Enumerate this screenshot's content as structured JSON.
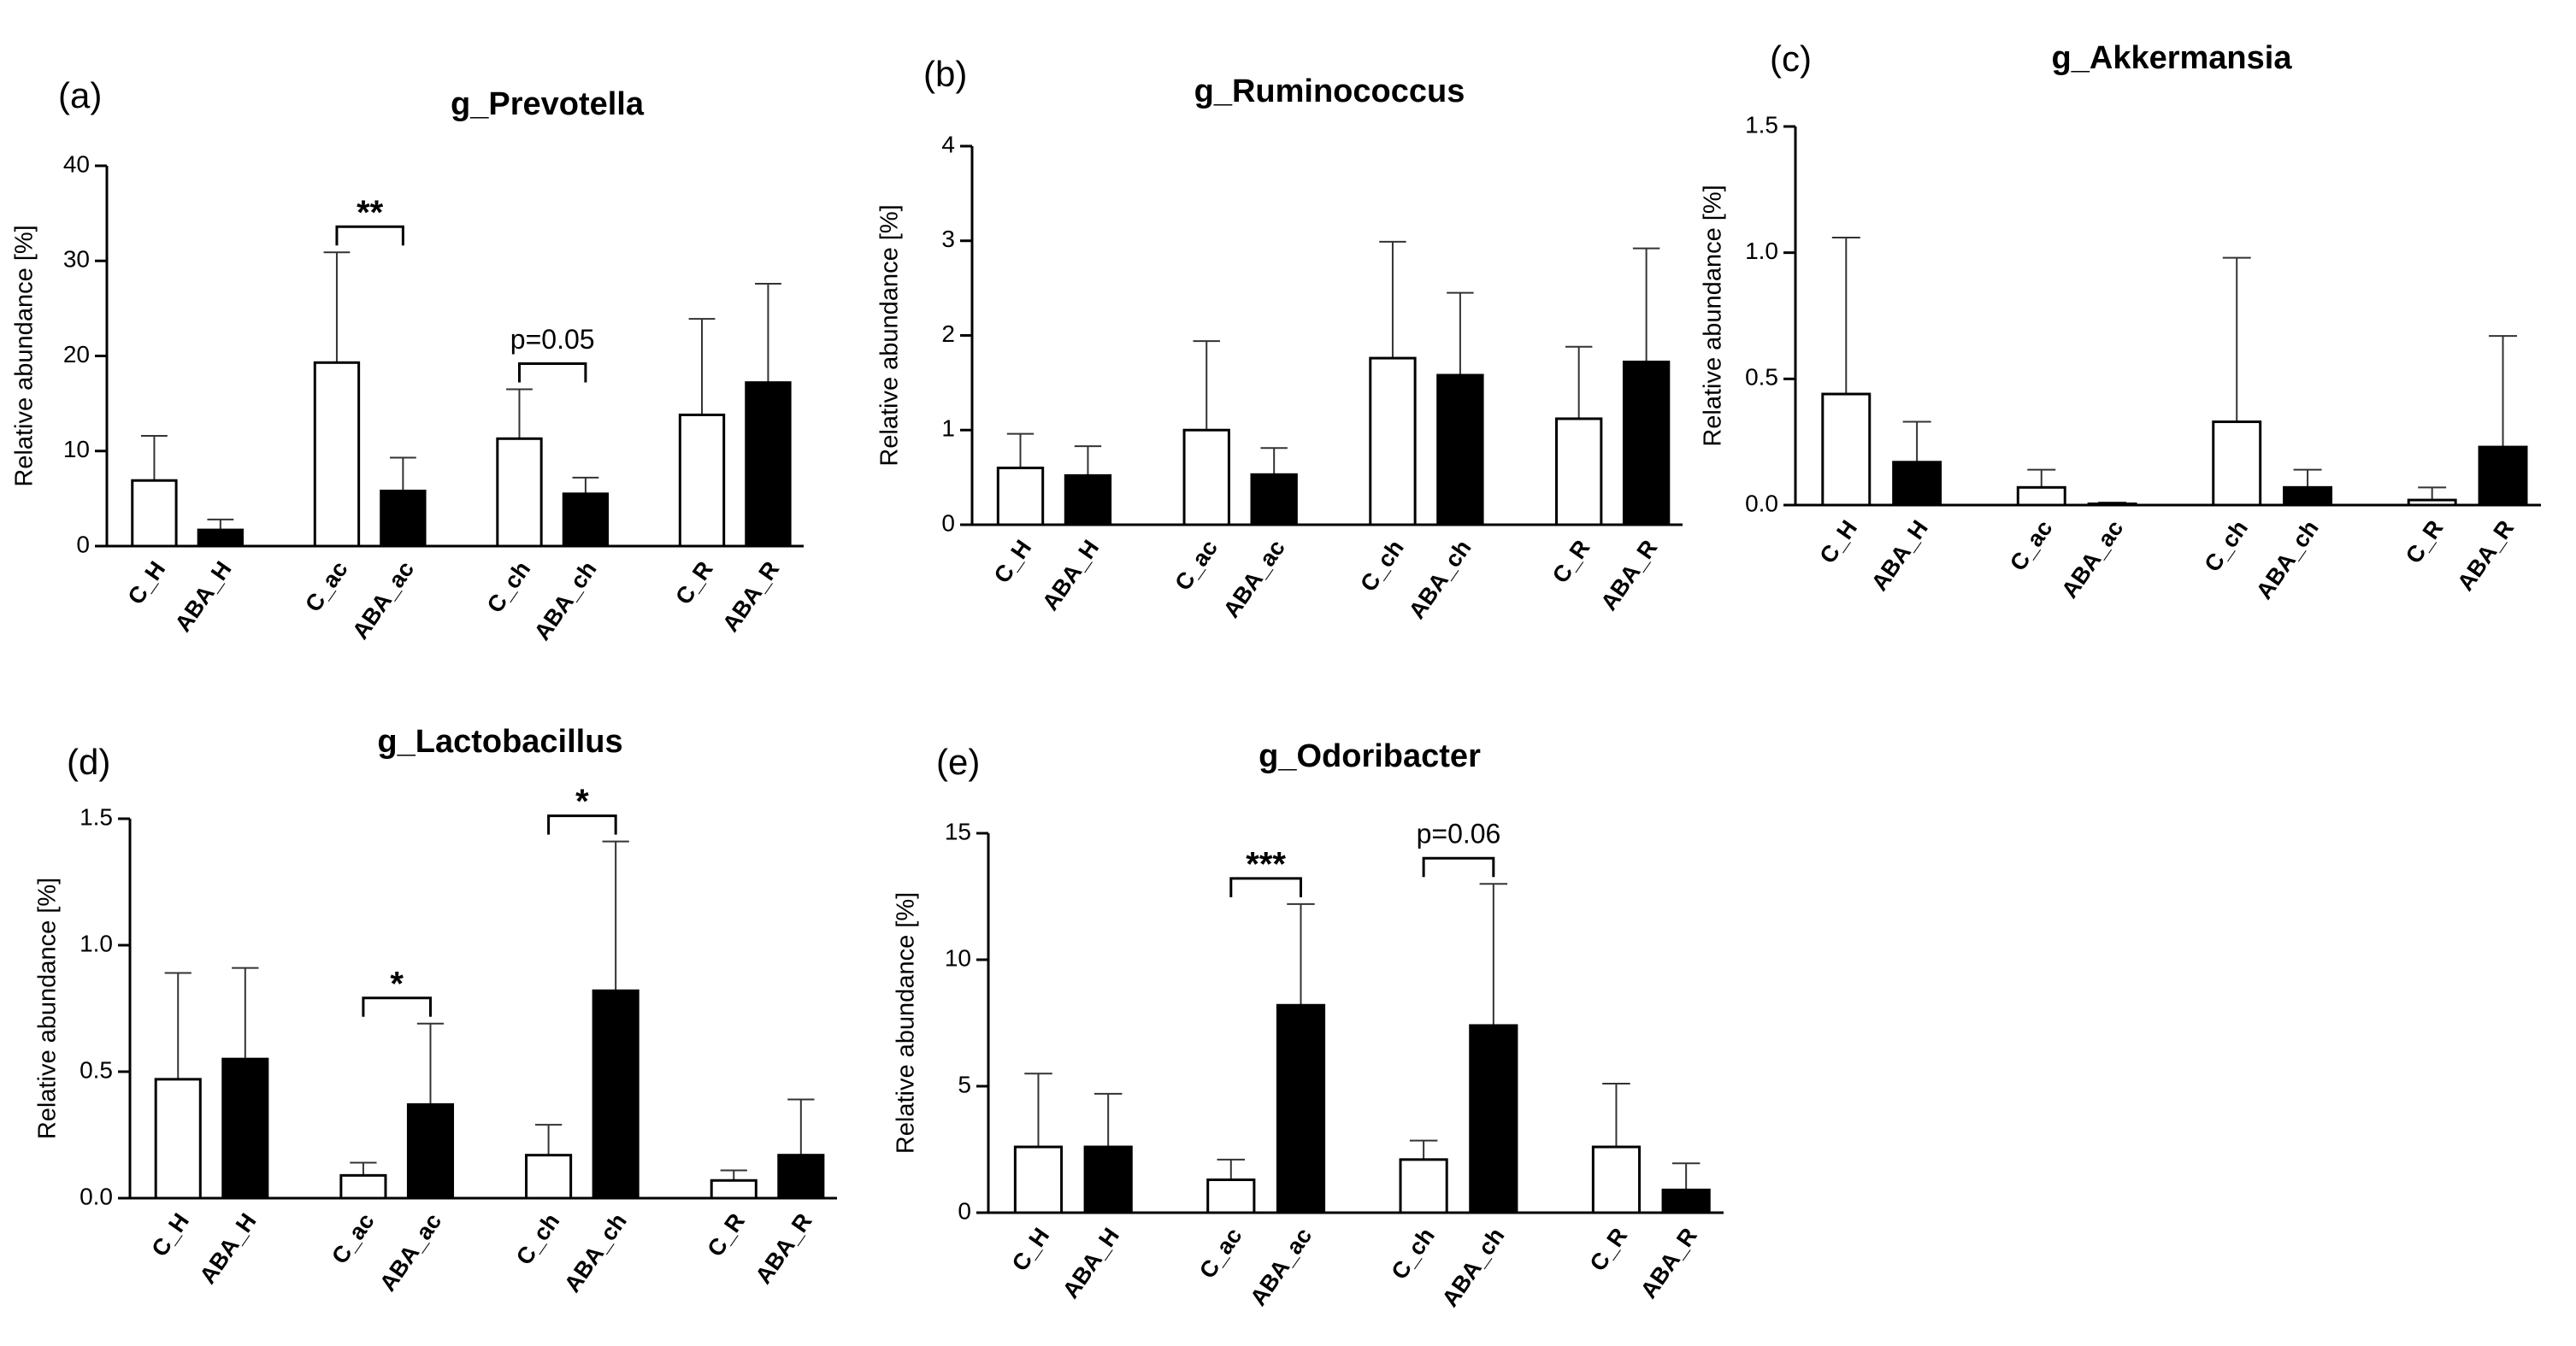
{
  "chart_data": [
    {
      "type": "bar",
      "panel": "(a)",
      "title": "g_Prevotella",
      "y_label": "Relative abundance [%]",
      "categories": [
        "C_H",
        "ABA_H",
        "C_ac",
        "ABA_ac",
        "C_ch",
        "ABA_ch",
        "C_R",
        "ABA_R"
      ],
      "values": [
        6.9,
        1.7,
        19.3,
        5.8,
        11.3,
        5.5,
        13.8,
        17.2
      ],
      "errors": [
        4.7,
        1.1,
        11.6,
        3.5,
        5.2,
        1.7,
        10.1,
        10.4
      ],
      "colors": [
        "#ffffff",
        "#000000",
        "#ffffff",
        "#000000",
        "#ffffff",
        "#000000",
        "#ffffff",
        "#000000"
      ],
      "ylim": [
        0,
        40
      ],
      "yticks": [
        0,
        10,
        20,
        30,
        40
      ],
      "annotations": [
        {
          "label": "**",
          "pair": [
            "C_ac",
            "ABA_ac"
          ]
        },
        {
          "label": "p=0.05",
          "pair": [
            "C_ch",
            "ABA_ch"
          ]
        }
      ]
    },
    {
      "type": "bar",
      "panel": "(b)",
      "title": "g_Ruminococcus",
      "y_label": "Relative abundance [%]",
      "categories": [
        "C_H",
        "ABA_H",
        "C_ac",
        "ABA_ac",
        "C_ch",
        "ABA_ch",
        "C_R",
        "ABA_R"
      ],
      "values": [
        0.6,
        0.52,
        1.0,
        0.53,
        1.76,
        1.58,
        1.12,
        1.72
      ],
      "errors": [
        0.36,
        0.31,
        0.94,
        0.28,
        1.23,
        0.87,
        0.76,
        1.2
      ],
      "colors": [
        "#ffffff",
        "#000000",
        "#ffffff",
        "#000000",
        "#ffffff",
        "#000000",
        "#ffffff",
        "#000000"
      ],
      "ylim": [
        0,
        4
      ],
      "yticks": [
        0,
        1,
        2,
        3,
        4
      ],
      "annotations": []
    },
    {
      "type": "bar",
      "panel": "(c)",
      "title": "g_Akkermansia",
      "y_label": "Relative abundance [%]",
      "categories": [
        "C_H",
        "ABA_H",
        "C_ac",
        "ABA_ac",
        "C_ch",
        "ABA_ch",
        "C_R",
        "ABA_R"
      ],
      "values": [
        0.44,
        0.17,
        0.07,
        0.005,
        0.33,
        0.07,
        0.02,
        0.23
      ],
      "errors": [
        0.62,
        0.16,
        0.07,
        0.005,
        0.65,
        0.07,
        0.05,
        0.44
      ],
      "colors": [
        "#ffffff",
        "#000000",
        "#ffffff",
        "#000000",
        "#ffffff",
        "#000000",
        "#ffffff",
        "#000000"
      ],
      "ylim": [
        0,
        1.5
      ],
      "yticks": [
        {
          "value": 0,
          "label": "0.0"
        },
        0.5,
        {
          "value": 1,
          "label": "1.0"
        },
        1.5
      ],
      "annotations": []
    },
    {
      "type": "bar",
      "panel": "(d)",
      "title": "g_Lactobacillus",
      "y_label": "Relative abundance [%]",
      "categories": [
        "C_H",
        "ABA_H",
        "C_ac",
        "ABA_ac",
        "C_ch",
        "ABA_ch",
        "C_R",
        "ABA_R"
      ],
      "values": [
        0.47,
        0.55,
        0.09,
        0.37,
        0.17,
        0.82,
        0.07,
        0.17
      ],
      "errors": [
        0.42,
        0.36,
        0.05,
        0.32,
        0.12,
        0.59,
        0.04,
        0.22
      ],
      "colors": [
        "#ffffff",
        "#000000",
        "#ffffff",
        "#000000",
        "#ffffff",
        "#000000",
        "#ffffff",
        "#000000"
      ],
      "ylim": [
        0,
        1.5
      ],
      "yticks": [
        {
          "value": 0,
          "label": "0.0"
        },
        0.5,
        {
          "value": 1,
          "label": "1.0"
        },
        1.5
      ],
      "annotations": [
        {
          "label": "*",
          "pair": [
            "C_ac",
            "ABA_ac"
          ]
        },
        {
          "label": "*",
          "pair": [
            "C_ch",
            "ABA_ch"
          ]
        }
      ]
    },
    {
      "type": "bar",
      "panel": "(e)",
      "title": "g_Odoribacter",
      "y_label": "Relative abundance [%]",
      "categories": [
        "C_H",
        "ABA_H",
        "C_ac",
        "ABA_ac",
        "C_ch",
        "ABA_ch",
        "C_R",
        "ABA_R"
      ],
      "values": [
        2.6,
        2.6,
        1.3,
        8.2,
        2.1,
        7.4,
        2.6,
        0.9
      ],
      "errors": [
        2.9,
        2.1,
        0.8,
        4.0,
        0.75,
        5.6,
        2.5,
        1.05
      ],
      "colors": [
        "#ffffff",
        "#000000",
        "#ffffff",
        "#000000",
        "#ffffff",
        "#000000",
        "#ffffff",
        "#000000"
      ],
      "ylim": [
        0,
        15
      ],
      "yticks": [
        0,
        5,
        10,
        15
      ],
      "annotations": [
        {
          "label": "***",
          "pair": [
            "C_ac",
            "ABA_ac"
          ]
        },
        {
          "label": "p=0.06",
          "pair": [
            "C_ch",
            "ABA_ch"
          ]
        }
      ]
    }
  ]
}
